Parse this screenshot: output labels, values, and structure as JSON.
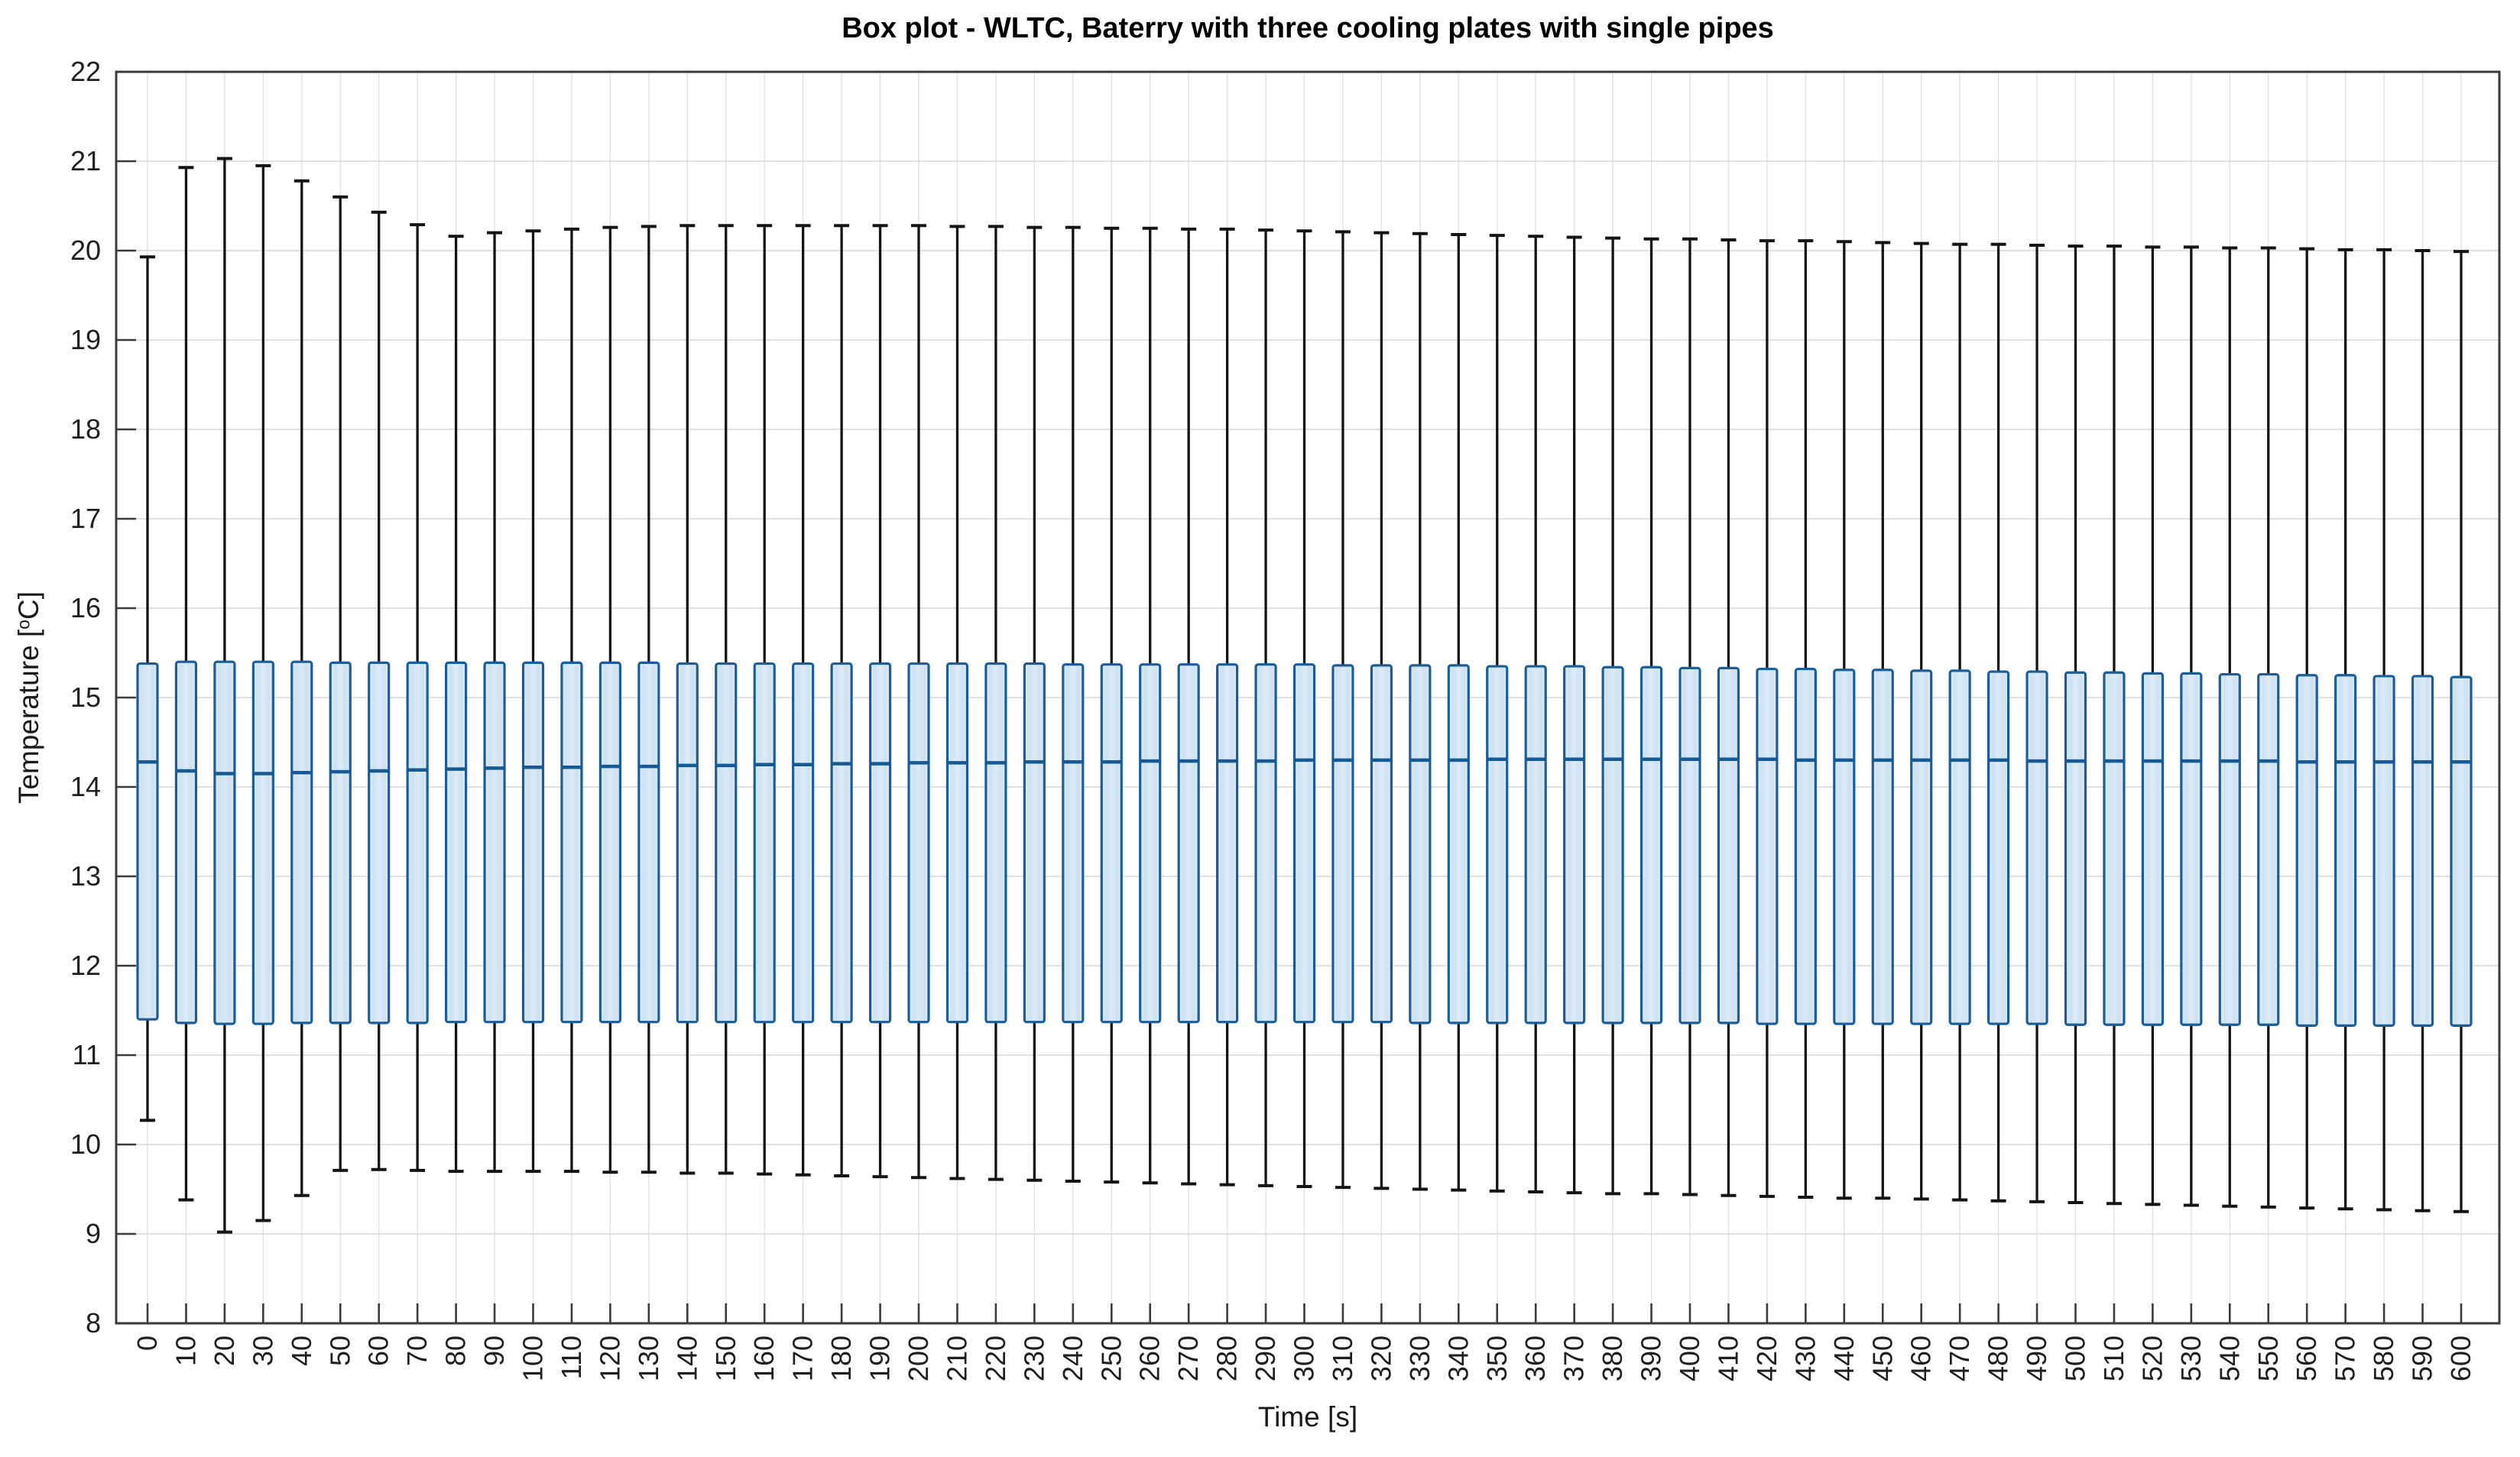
{
  "figure": {
    "background": "#ffffff"
  },
  "chart_data": {
    "type": "boxplot",
    "title": "Box plot - WLTC, Baterry with three cooling plates with single pipes",
    "xlabel": "Time [s]",
    "ylabel": {
      "prefix": "Temperature [",
      "superscript": "o",
      "suffix": "C]"
    },
    "x_categories": [
      0,
      10,
      20,
      30,
      40,
      50,
      60,
      70,
      80,
      90,
      100,
      110,
      120,
      130,
      140,
      150,
      160,
      170,
      180,
      190,
      200,
      210,
      220,
      230,
      240,
      250,
      260,
      270,
      280,
      290,
      300,
      310,
      320,
      330,
      340,
      350,
      360,
      370,
      380,
      390,
      400,
      410,
      420,
      430,
      440,
      450,
      460,
      470,
      480,
      490,
      500,
      510,
      520,
      530,
      540,
      550,
      560,
      570,
      580,
      590,
      600
    ],
    "y_ticks": [
      8,
      9,
      10,
      11,
      12,
      13,
      14,
      15,
      16,
      17,
      18,
      19,
      20,
      21,
      22
    ],
    "ylim": [
      8,
      22
    ],
    "grid": true,
    "legend": "none",
    "series": {
      "whisker_high": [
        19.93,
        20.93,
        21.03,
        20.95,
        20.78,
        20.6,
        20.43,
        20.29,
        20.16,
        20.2,
        20.22,
        20.24,
        20.26,
        20.27,
        20.28,
        20.28,
        20.28,
        20.28,
        20.28,
        20.28,
        20.28,
        20.27,
        20.27,
        20.26,
        20.26,
        20.25,
        20.25,
        20.24,
        20.24,
        20.23,
        20.22,
        20.21,
        20.2,
        20.19,
        20.18,
        20.17,
        20.16,
        20.15,
        20.14,
        20.13,
        20.13,
        20.12,
        20.11,
        20.11,
        20.1,
        20.09,
        20.08,
        20.07,
        20.07,
        20.06,
        20.05,
        20.05,
        20.04,
        20.04,
        20.03,
        20.03,
        20.02,
        20.01,
        20.01,
        20.0,
        19.99
      ],
      "q3": [
        15.38,
        15.4,
        15.4,
        15.4,
        15.4,
        15.39,
        15.39,
        15.39,
        15.39,
        15.39,
        15.39,
        15.39,
        15.39,
        15.39,
        15.38,
        15.38,
        15.38,
        15.38,
        15.38,
        15.38,
        15.38,
        15.38,
        15.38,
        15.38,
        15.37,
        15.37,
        15.37,
        15.37,
        15.37,
        15.37,
        15.37,
        15.36,
        15.36,
        15.36,
        15.36,
        15.35,
        15.35,
        15.35,
        15.34,
        15.34,
        15.33,
        15.33,
        15.32,
        15.32,
        15.31,
        15.31,
        15.3,
        15.3,
        15.29,
        15.29,
        15.28,
        15.28,
        15.27,
        15.27,
        15.26,
        15.26,
        15.25,
        15.25,
        15.24,
        15.24,
        15.23
      ],
      "median": [
        14.28,
        14.18,
        14.15,
        14.15,
        14.16,
        14.17,
        14.18,
        14.19,
        14.2,
        14.21,
        14.22,
        14.22,
        14.23,
        14.23,
        14.24,
        14.24,
        14.25,
        14.25,
        14.26,
        14.26,
        14.27,
        14.27,
        14.27,
        14.28,
        14.28,
        14.28,
        14.29,
        14.29,
        14.29,
        14.29,
        14.3,
        14.3,
        14.3,
        14.3,
        14.3,
        14.31,
        14.31,
        14.31,
        14.31,
        14.31,
        14.31,
        14.31,
        14.31,
        14.3,
        14.3,
        14.3,
        14.3,
        14.3,
        14.3,
        14.29,
        14.29,
        14.29,
        14.29,
        14.29,
        14.29,
        14.29,
        14.28,
        14.28,
        14.28,
        14.28,
        14.28
      ],
      "q1": [
        11.4,
        11.36,
        11.35,
        11.35,
        11.36,
        11.36,
        11.36,
        11.36,
        11.37,
        11.37,
        11.37,
        11.37,
        11.37,
        11.37,
        11.37,
        11.37,
        11.37,
        11.37,
        11.37,
        11.37,
        11.37,
        11.37,
        11.37,
        11.37,
        11.37,
        11.37,
        11.37,
        11.37,
        11.37,
        11.37,
        11.37,
        11.37,
        11.37,
        11.36,
        11.36,
        11.36,
        11.36,
        11.36,
        11.36,
        11.36,
        11.36,
        11.36,
        11.35,
        11.35,
        11.35,
        11.35,
        11.35,
        11.35,
        11.35,
        11.35,
        11.34,
        11.34,
        11.34,
        11.34,
        11.34,
        11.34,
        11.33,
        11.33,
        11.33,
        11.33,
        11.33
      ],
      "whisker_low": [
        10.27,
        9.38,
        9.02,
        9.15,
        9.43,
        9.71,
        9.72,
        9.71,
        9.7,
        9.7,
        9.7,
        9.7,
        9.69,
        9.69,
        9.68,
        9.68,
        9.67,
        9.66,
        9.65,
        9.64,
        9.63,
        9.62,
        9.61,
        9.6,
        9.59,
        9.58,
        9.57,
        9.56,
        9.55,
        9.54,
        9.53,
        9.52,
        9.51,
        9.5,
        9.49,
        9.48,
        9.47,
        9.46,
        9.45,
        9.45,
        9.44,
        9.43,
        9.42,
        9.41,
        9.4,
        9.4,
        9.39,
        9.38,
        9.37,
        9.36,
        9.35,
        9.34,
        9.33,
        9.32,
        9.31,
        9.3,
        9.29,
        9.28,
        9.27,
        9.26,
        9.25
      ],
      "outliers": []
    },
    "colors": {
      "box_fill_center": "#dcebf7",
      "box_fill_mid": "#cde1f1",
      "box_fill_edge": "#e2eff9",
      "box_border": "#1a5d99",
      "median_line": "#155a94",
      "whisker": "#141414",
      "grid_horizontal": "#d6d6d6",
      "grid_vertical": "#e1e1e1",
      "axis": "#3a3a3a",
      "tick_label": "#1f1f1f",
      "title_color": "#000000"
    }
  }
}
